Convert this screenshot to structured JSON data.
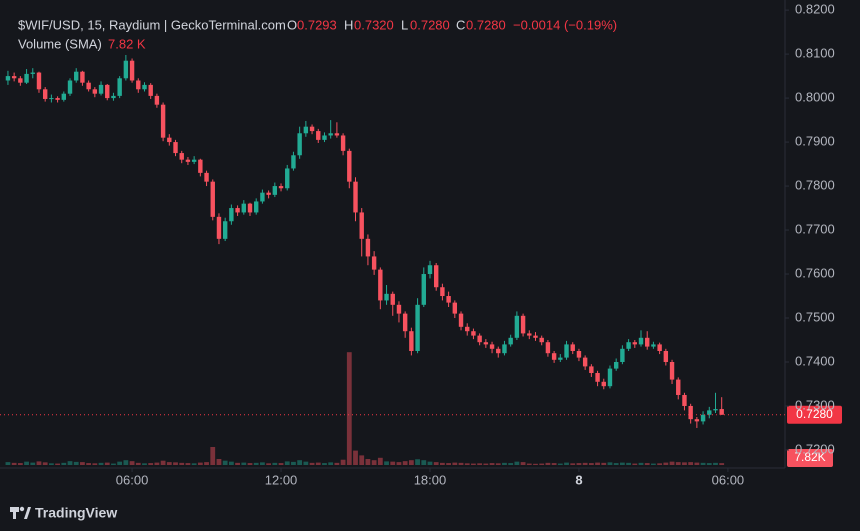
{
  "chart_data": {
    "type": "candlestick",
    "title": "$WIF/USD, 15, Raydium | GeckoTerminal.com",
    "ohlc_names": [
      "O",
      "H",
      "L",
      "C"
    ],
    "last_labels": {
      "open": "0.7293",
      "high": "0.7320",
      "low": "0.7280",
      "close": "0.7280",
      "change": "−0.0014 (−0.19%)"
    },
    "volume_title": "Volume (SMA)",
    "volume_label": "7.82 K",
    "volume_badge": "7.82K",
    "price_label": "0.7280",
    "brand": "TradingView",
    "up_color": "#22ab94",
    "down_color": "#f7525f",
    "grid": false,
    "ylim": [
      0.7159,
      0.8223
    ],
    "yticks": [
      {
        "value": 0.72,
        "label": "0.7200"
      },
      {
        "value": 0.73,
        "label": "0.7300"
      },
      {
        "value": 0.74,
        "label": "0.7400"
      },
      {
        "value": 0.75,
        "label": "0.7500"
      },
      {
        "value": 0.76,
        "label": "0.7600"
      },
      {
        "value": 0.77,
        "label": "0.7700"
      },
      {
        "value": 0.78,
        "label": "0.7800"
      },
      {
        "value": 0.79,
        "label": "0.7900"
      },
      {
        "value": 0.8,
        "label": "0.8000"
      },
      {
        "value": 0.81,
        "label": "0.8100"
      },
      {
        "value": 0.82,
        "label": "0.8200"
      }
    ],
    "xlim": [
      0.68,
      32.3
    ],
    "xticks": [
      {
        "value": 6,
        "label": "06:00"
      },
      {
        "value": 12,
        "label": "12:00"
      },
      {
        "value": 18,
        "label": "18:00"
      },
      {
        "value": 24,
        "label": "8"
      },
      {
        "value": 30,
        "label": "06:00"
      }
    ],
    "vlim": [
      0,
      500000
    ],
    "x": [
      1,
      1.25,
      1.5,
      1.75,
      2,
      2.25,
      2.5,
      2.75,
      3,
      3.25,
      3.5,
      3.75,
      4,
      4.25,
      4.5,
      4.75,
      5,
      5.25,
      5.5,
      5.75,
      6,
      6.25,
      6.5,
      6.75,
      7,
      7.25,
      7.5,
      7.75,
      8,
      8.25,
      8.5,
      8.75,
      9,
      9.25,
      9.5,
      9.75,
      10,
      10.25,
      10.5,
      10.75,
      11,
      11.25,
      11.5,
      11.75,
      12,
      12.25,
      12.5,
      12.75,
      13,
      13.25,
      13.5,
      13.75,
      14,
      14.25,
      14.5,
      14.75,
      15,
      15.25,
      15.5,
      15.75,
      16,
      16.25,
      16.5,
      16.75,
      17,
      17.25,
      17.5,
      17.75,
      18,
      18.25,
      18.5,
      18.75,
      19,
      19.25,
      19.5,
      19.75,
      20,
      20.25,
      20.5,
      20.75,
      21,
      21.25,
      21.5,
      21.75,
      22,
      22.25,
      22.5,
      22.75,
      23,
      23.25,
      23.5,
      23.75,
      24,
      24.25,
      24.5,
      24.75,
      25,
      25.25,
      25.5,
      25.75,
      26,
      26.25,
      26.5,
      26.75,
      27,
      27.25,
      27.5,
      27.75,
      28,
      28.25,
      28.5,
      28.75,
      29,
      29.25,
      29.5,
      29.75
    ],
    "candles": [
      [
        0.804,
        0.8062,
        0.803,
        0.805
      ],
      [
        0.805,
        0.8058,
        0.8038,
        0.8045
      ],
      [
        0.8045,
        0.805,
        0.8028,
        0.8035
      ],
      [
        0.8035,
        0.8066,
        0.8032,
        0.8055
      ],
      [
        0.8055,
        0.8068,
        0.8045,
        0.8058
      ],
      [
        0.8058,
        0.806,
        0.8012,
        0.802
      ],
      [
        0.802,
        0.8025,
        0.7992,
        0.7998
      ],
      [
        0.7998,
        0.8008,
        0.799,
        0.8
      ],
      [
        0.8,
        0.8004,
        0.799,
        0.7996
      ],
      [
        0.7996,
        0.8015,
        0.7992,
        0.801
      ],
      [
        0.801,
        0.8045,
        0.8005,
        0.804
      ],
      [
        0.804,
        0.8068,
        0.8035,
        0.806
      ],
      [
        0.806,
        0.8062,
        0.8028,
        0.8035
      ],
      [
        0.8035,
        0.804,
        0.8015,
        0.802
      ],
      [
        0.802,
        0.8025,
        0.8002,
        0.801
      ],
      [
        0.801,
        0.8038,
        0.8006,
        0.803
      ],
      [
        0.803,
        0.8032,
        0.7995,
        0.8
      ],
      [
        0.8,
        0.8012,
        0.7994,
        0.8005
      ],
      [
        0.8005,
        0.805,
        0.8,
        0.8045
      ],
      [
        0.8045,
        0.8098,
        0.804,
        0.8085
      ],
      [
        0.8085,
        0.809,
        0.8035,
        0.804
      ],
      [
        0.804,
        0.8045,
        0.8012,
        0.802
      ],
      [
        0.802,
        0.8036,
        0.8015,
        0.803
      ],
      [
        0.803,
        0.8034,
        0.7998,
        0.8005
      ],
      [
        0.8005,
        0.801,
        0.7978,
        0.7985
      ],
      [
        0.7985,
        0.799,
        0.7902,
        0.791
      ],
      [
        0.791,
        0.7918,
        0.7892,
        0.79
      ],
      [
        0.79,
        0.7905,
        0.7868,
        0.7875
      ],
      [
        0.7875,
        0.788,
        0.7852,
        0.786
      ],
      [
        0.786,
        0.7866,
        0.7848,
        0.7855
      ],
      [
        0.7855,
        0.7868,
        0.785,
        0.786
      ],
      [
        0.786,
        0.7862,
        0.7822,
        0.783
      ],
      [
        0.783,
        0.7835,
        0.78,
        0.781
      ],
      [
        0.781,
        0.7815,
        0.7722,
        0.773
      ],
      [
        0.773,
        0.7738,
        0.7668,
        0.768
      ],
      [
        0.768,
        0.7728,
        0.7675,
        0.772
      ],
      [
        0.772,
        0.7758,
        0.7712,
        0.775
      ],
      [
        0.775,
        0.7756,
        0.7732,
        0.774
      ],
      [
        0.774,
        0.7768,
        0.7735,
        0.776
      ],
      [
        0.776,
        0.7762,
        0.7732,
        0.774
      ],
      [
        0.774,
        0.7772,
        0.7735,
        0.7765
      ],
      [
        0.7765,
        0.7792,
        0.776,
        0.7785
      ],
      [
        0.7785,
        0.779,
        0.7772,
        0.778
      ],
      [
        0.778,
        0.7808,
        0.7775,
        0.78
      ],
      [
        0.78,
        0.7806,
        0.7788,
        0.7795
      ],
      [
        0.7795,
        0.7848,
        0.779,
        0.784
      ],
      [
        0.784,
        0.7878,
        0.7835,
        0.787
      ],
      [
        0.787,
        0.7935,
        0.7862,
        0.792
      ],
      [
        0.792,
        0.7948,
        0.7912,
        0.7935
      ],
      [
        0.7935,
        0.794,
        0.7918,
        0.7925
      ],
      [
        0.7925,
        0.793,
        0.7898,
        0.7905
      ],
      [
        0.7905,
        0.7922,
        0.79,
        0.7915
      ],
      [
        0.7915,
        0.795,
        0.7908,
        0.792
      ],
      [
        0.792,
        0.7945,
        0.791,
        0.7915
      ],
      [
        0.7915,
        0.792,
        0.787,
        0.788
      ],
      [
        0.788,
        0.7885,
        0.7795,
        0.781
      ],
      [
        0.781,
        0.782,
        0.772,
        0.774
      ],
      [
        0.774,
        0.775,
        0.764,
        0.768
      ],
      [
        0.768,
        0.769,
        0.762,
        0.764
      ],
      [
        0.764,
        0.7652,
        0.7598,
        0.761
      ],
      [
        0.761,
        0.7615,
        0.752,
        0.754
      ],
      [
        0.754,
        0.7575,
        0.753,
        0.7555
      ],
      [
        0.7555,
        0.756,
        0.7505,
        0.753
      ],
      [
        0.753,
        0.7538,
        0.749,
        0.751
      ],
      [
        0.751,
        0.7515,
        0.7455,
        0.747
      ],
      [
        0.747,
        0.7478,
        0.7415,
        0.7425
      ],
      [
        0.7425,
        0.7545,
        0.742,
        0.753
      ],
      [
        0.753,
        0.7615,
        0.7525,
        0.76
      ],
      [
        0.76,
        0.763,
        0.759,
        0.762
      ],
      [
        0.762,
        0.7625,
        0.7562,
        0.757
      ],
      [
        0.757,
        0.7578,
        0.754,
        0.755
      ],
      [
        0.755,
        0.756,
        0.7525,
        0.7535
      ],
      [
        0.7535,
        0.754,
        0.75,
        0.751
      ],
      [
        0.751,
        0.7515,
        0.7472,
        0.748
      ],
      [
        0.748,
        0.7488,
        0.746,
        0.747
      ],
      [
        0.747,
        0.7476,
        0.7452,
        0.746
      ],
      [
        0.746,
        0.7465,
        0.7438,
        0.7445
      ],
      [
        0.7445,
        0.7452,
        0.7432,
        0.744
      ],
      [
        0.744,
        0.7446,
        0.742,
        0.743
      ],
      [
        0.743,
        0.7435,
        0.741,
        0.742
      ],
      [
        0.742,
        0.7448,
        0.7415,
        0.744
      ],
      [
        0.744,
        0.7462,
        0.7435,
        0.7455
      ],
      [
        0.7455,
        0.7515,
        0.745,
        0.7505
      ],
      [
        0.7505,
        0.751,
        0.7458,
        0.7465
      ],
      [
        0.7465,
        0.7472,
        0.7452,
        0.746
      ],
      [
        0.746,
        0.7468,
        0.7448,
        0.7455
      ],
      [
        0.7455,
        0.746,
        0.7438,
        0.7445
      ],
      [
        0.7445,
        0.745,
        0.7412,
        0.742
      ],
      [
        0.742,
        0.7425,
        0.7398,
        0.7405
      ],
      [
        0.7405,
        0.7418,
        0.74,
        0.741
      ],
      [
        0.741,
        0.7448,
        0.7405,
        0.744
      ],
      [
        0.744,
        0.7445,
        0.7418,
        0.7425
      ],
      [
        0.7425,
        0.743,
        0.7402,
        0.741
      ],
      [
        0.741,
        0.7415,
        0.7382,
        0.739
      ],
      [
        0.739,
        0.7395,
        0.7366,
        0.7375
      ],
      [
        0.7375,
        0.738,
        0.7345,
        0.7355
      ],
      [
        0.7355,
        0.7362,
        0.7338,
        0.7345
      ],
      [
        0.7345,
        0.7392,
        0.734,
        0.7385
      ],
      [
        0.7385,
        0.7408,
        0.738,
        0.74
      ],
      [
        0.74,
        0.7438,
        0.7395,
        0.743
      ],
      [
        0.743,
        0.7452,
        0.7425,
        0.7445
      ],
      [
        0.7445,
        0.745,
        0.7432,
        0.744
      ],
      [
        0.744,
        0.7472,
        0.7435,
        0.7455
      ],
      [
        0.7455,
        0.747,
        0.7428,
        0.7435
      ],
      [
        0.7435,
        0.7446,
        0.743,
        0.744
      ],
      [
        0.744,
        0.7444,
        0.7418,
        0.7425
      ],
      [
        0.7425,
        0.743,
        0.7392,
        0.74
      ],
      [
        0.74,
        0.7405,
        0.735,
        0.736
      ],
      [
        0.736,
        0.7365,
        0.7315,
        0.7325
      ],
      [
        0.7325,
        0.733,
        0.729,
        0.73
      ],
      [
        0.73,
        0.7305,
        0.726,
        0.727
      ],
      [
        0.727,
        0.7275,
        0.725,
        0.7265
      ],
      [
        0.7265,
        0.7288,
        0.7258,
        0.728
      ],
      [
        0.728,
        0.7298,
        0.7272,
        0.729
      ],
      [
        0.729,
        0.733,
        0.7284,
        0.7293
      ],
      [
        0.7293,
        0.732,
        0.728,
        0.728
      ]
    ],
    "volume": [
      12000,
      9000,
      8000,
      14000,
      10000,
      15000,
      11000,
      7000,
      6000,
      9000,
      16000,
      13000,
      12000,
      8000,
      7000,
      9000,
      10000,
      6000,
      14000,
      20000,
      16000,
      9000,
      7000,
      8000,
      10000,
      18000,
      12000,
      11000,
      9000,
      8000,
      7000,
      10000,
      12000,
      75000,
      25000,
      18000,
      14000,
      9000,
      10000,
      8000,
      9000,
      11000,
      7000,
      9000,
      8000,
      15000,
      13000,
      20000,
      14000,
      9000,
      10000,
      8000,
      11000,
      9000,
      22000,
      470000,
      60000,
      40000,
      25000,
      20000,
      30000,
      15000,
      14000,
      12000,
      16000,
      20000,
      24000,
      20000,
      14000,
      12000,
      9000,
      8000,
      10000,
      9000,
      7000,
      6000,
      7000,
      6000,
      8000,
      7000,
      9000,
      8000,
      14000,
      12000,
      6000,
      5000,
      6000,
      9000,
      8000,
      6000,
      10000,
      7000,
      8000,
      9000,
      8000,
      10000,
      9000,
      11000,
      8000,
      10000,
      9000,
      6000,
      9000,
      8000,
      6000,
      7000,
      10000,
      14000,
      12000,
      11000,
      12000,
      10000,
      9000,
      8000,
      9000,
      7820
    ]
  }
}
